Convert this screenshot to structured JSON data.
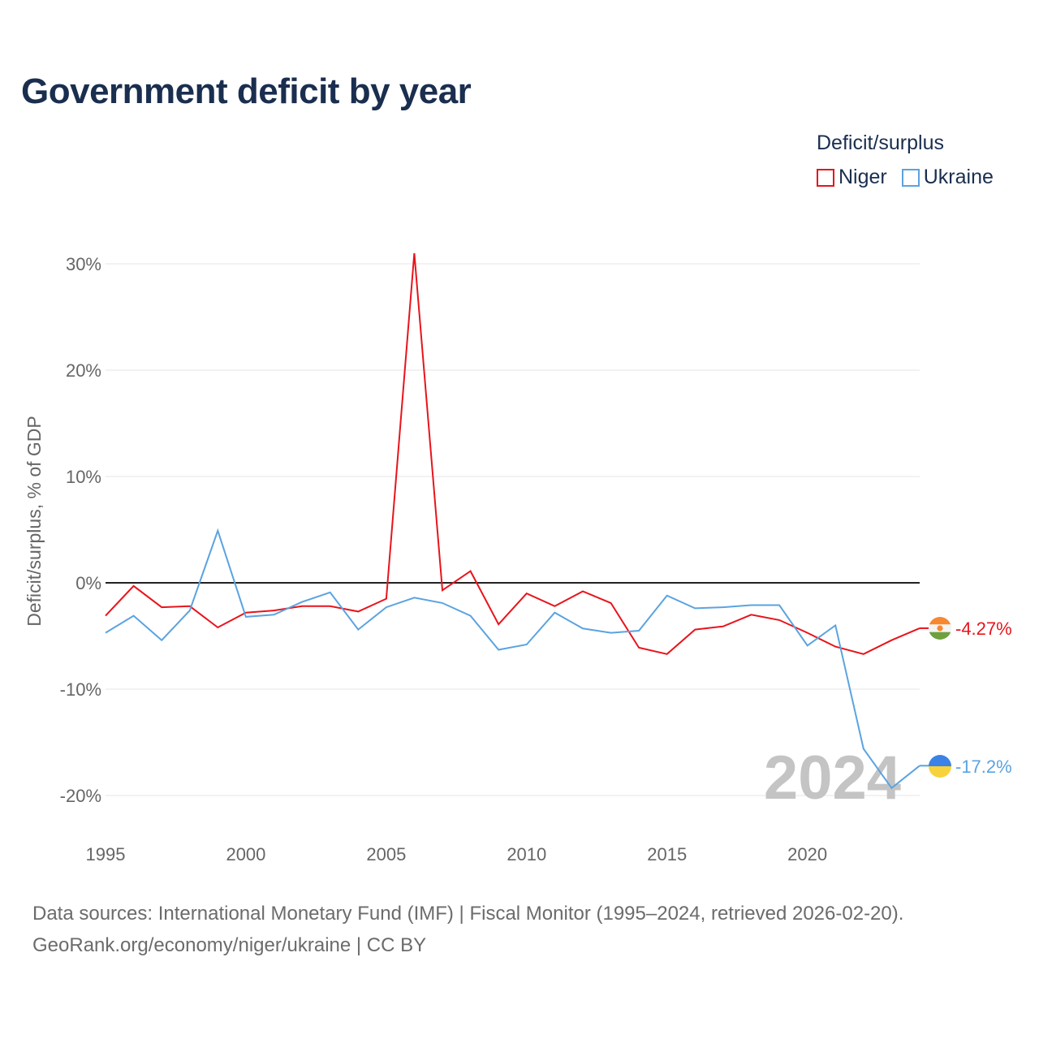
{
  "title": "Government deficit by year",
  "legend": {
    "title": "Deficit/surplus",
    "items": [
      {
        "label": "Niger",
        "color": "#e8141b"
      },
      {
        "label": "Ukraine",
        "color": "#5ba3e0"
      }
    ]
  },
  "source": {
    "line1": "Data sources: International Monetary Fund (IMF) | Fiscal Monitor (1995–2024, retrieved 2026-02-20).",
    "line2": "GeoRank.org/economy/niger/ukraine | CC BY"
  },
  "watermark_year": "2024",
  "chart_data": {
    "type": "line",
    "title": "Government deficit by year",
    "xlabel": "",
    "ylabel": "Deficit/surplus, % of GDP",
    "xlim": [
      1995,
      2024
    ],
    "ylim": [
      -22,
      32
    ],
    "x_ticks": [
      1995,
      2000,
      2005,
      2010,
      2015,
      2020
    ],
    "x_tick_labels": [
      "1995",
      "2000",
      "2005",
      "2010",
      "2015",
      "2020"
    ],
    "y_ticks": [
      30,
      20,
      10,
      0,
      -10,
      -20
    ],
    "y_tick_labels": [
      "30%",
      "20%",
      "10%",
      "0%",
      "-10%",
      "-20%"
    ],
    "grid": true,
    "zero_line": true,
    "x": [
      1995,
      1996,
      1997,
      1998,
      1999,
      2000,
      2001,
      2002,
      2003,
      2004,
      2005,
      2006,
      2007,
      2008,
      2009,
      2010,
      2011,
      2012,
      2013,
      2014,
      2015,
      2016,
      2017,
      2018,
      2019,
      2020,
      2021,
      2022,
      2023,
      2024
    ],
    "series": [
      {
        "name": "Niger",
        "color": "#e8141b",
        "values": [
          -3.1,
          -0.3,
          -2.3,
          -2.2,
          -4.2,
          -2.8,
          -2.6,
          -2.2,
          -2.2,
          -2.7,
          -1.5,
          31.0,
          -0.7,
          1.1,
          -3.9,
          -1.0,
          -2.2,
          -0.8,
          -1.9,
          -6.1,
          -6.7,
          -4.4,
          -4.1,
          -3.0,
          -3.5,
          -4.7,
          -6.0,
          -6.7,
          -5.4,
          -4.27
        ],
        "end_label": "-4.27%"
      },
      {
        "name": "Ukraine",
        "color": "#5ba3e0",
        "values": [
          -4.7,
          -3.1,
          -5.4,
          -2.6,
          4.9,
          -3.2,
          -3.0,
          -1.8,
          -0.9,
          -4.4,
          -2.3,
          -1.4,
          -1.9,
          -3.1,
          -6.3,
          -5.8,
          -2.8,
          -4.3,
          -4.7,
          -4.5,
          -1.2,
          -2.4,
          -2.3,
          -2.1,
          -2.1,
          -5.9,
          -4.0,
          -15.6,
          -19.3,
          -17.2
        ],
        "end_label": "-17.2%"
      }
    ]
  }
}
